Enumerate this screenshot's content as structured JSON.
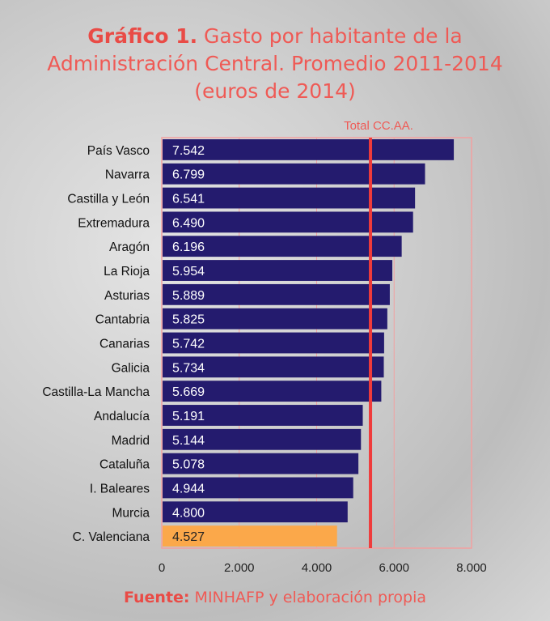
{
  "title": {
    "prefix": "Gráfico 1.",
    "line1": " Gasto por habitante de la",
    "line2": "Administración Central. Promedio 2011-2014",
    "line3": "(euros de 2014)"
  },
  "source": {
    "label": "Fuente:",
    "text": " MINHAFP y elaboración propia"
  },
  "chart_data": {
    "type": "bar",
    "orientation": "horizontal",
    "categories": [
      "País Vasco",
      "Navarra",
      "Castilla y León",
      "Extremadura",
      "Aragón",
      "La Rioja",
      "Asturias",
      "Cantabria",
      "Canarias",
      "Galicia",
      "Castilla-La Mancha",
      "Andalucía",
      "Madrid",
      "Cataluña",
      "I. Baleares",
      "Murcia",
      "C. Valenciana"
    ],
    "values": [
      7542,
      6799,
      6541,
      6490,
      6196,
      5954,
      5889,
      5825,
      5742,
      5734,
      5669,
      5191,
      5144,
      5078,
      4944,
      4800,
      4527
    ],
    "data_labels": [
      "7.542",
      "6.799",
      "6.541",
      "6.490",
      "6.196",
      "5.954",
      "5.889",
      "5.825",
      "5.742",
      "5.734",
      "5.669",
      "5.191",
      "5.144",
      "5.078",
      "4.944",
      "4.800",
      "4.527"
    ],
    "highlight": "C. Valenciana",
    "xlim": [
      0,
      8000
    ],
    "xticks": [
      0,
      2000,
      4000,
      6000,
      8000
    ],
    "xtick_labels": [
      "0",
      "2.000",
      "4.000",
      "6.000",
      "8.000"
    ],
    "grid": true,
    "reference_line": {
      "label": "Total CC.AA.",
      "value": 5390
    },
    "colors": {
      "bar": "#241b6e",
      "highlight": "#fba84a",
      "reference": "#ef3b3b",
      "grid": "#f2a0a0"
    }
  }
}
